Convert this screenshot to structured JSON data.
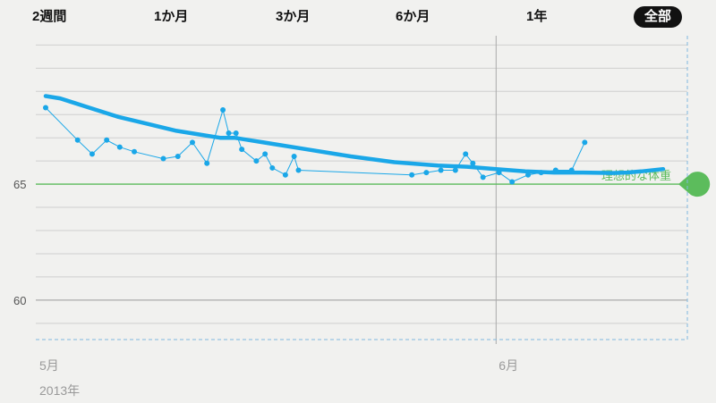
{
  "tabs": [
    {
      "label": "2週間",
      "active": false
    },
    {
      "label": "1か月",
      "active": false
    },
    {
      "label": "3か月",
      "active": false
    },
    {
      "label": "6か月",
      "active": false
    },
    {
      "label": "1年",
      "active": false
    },
    {
      "label": "全部",
      "active": true
    }
  ],
  "chart_data": {
    "type": "line",
    "title": "",
    "xlabel": "",
    "ylabel": "",
    "ylim": [
      58.3,
      71.4
    ],
    "y_ticks": [
      65,
      60
    ],
    "x_ticks": [
      {
        "x": 1,
        "label": "5月"
      },
      {
        "x": 32,
        "label": "6月"
      }
    ],
    "year_label": "2013年",
    "xlim": [
      1,
      44.5
    ],
    "grid": true,
    "goal": {
      "value": 65,
      "label": "理想的な体重"
    },
    "colors": {
      "line": "#1aa7e8",
      "goal": "#5cbc5c",
      "gridline": "#cfcfcf",
      "axis": "#aaaaaa",
      "dashed": "#7fb8df"
    },
    "series": [
      {
        "style": "thin-with-markers",
        "x": [
          1,
          3.2,
          4.2,
          5.2,
          6.1,
          7.1,
          9.1,
          10.1,
          11.1,
          12.1,
          13.2,
          13.6,
          14.1,
          14.5,
          15.5,
          16.1,
          16.6,
          17.5,
          18.1,
          18.4,
          26.2,
          27.2,
          28.2,
          29.2,
          29.9,
          30.4,
          31.1,
          32.2,
          33.1,
          34.2,
          35.1,
          36.1,
          37.2,
          38.1
        ],
        "values": [
          68.3,
          66.9,
          66.3,
          66.9,
          66.6,
          66.4,
          66.1,
          66.2,
          66.8,
          65.9,
          68.2,
          67.2,
          67.2,
          66.5,
          66.0,
          66.3,
          65.7,
          65.4,
          66.2,
          65.6,
          65.4,
          65.5,
          65.6,
          65.6,
          66.3,
          65.9,
          65.3,
          65.5,
          65.1,
          65.4,
          65.5,
          65.6,
          65.6,
          66.8
        ]
      },
      {
        "style": "thick-trend",
        "x": [
          1,
          2,
          3,
          4,
          6,
          8,
          10,
          12,
          13,
          14,
          15,
          16,
          17,
          19,
          22,
          25,
          28,
          30,
          32,
          34,
          36,
          38,
          40,
          41,
          42,
          43.5
        ],
        "values": [
          68.8,
          68.7,
          68.5,
          68.3,
          67.9,
          67.6,
          67.3,
          67.1,
          67.0,
          67.0,
          66.9,
          66.8,
          66.7,
          66.5,
          66.2,
          65.95,
          65.8,
          65.75,
          65.65,
          65.55,
          65.5,
          65.5,
          65.48,
          65.5,
          65.55,
          65.65
        ]
      }
    ]
  }
}
